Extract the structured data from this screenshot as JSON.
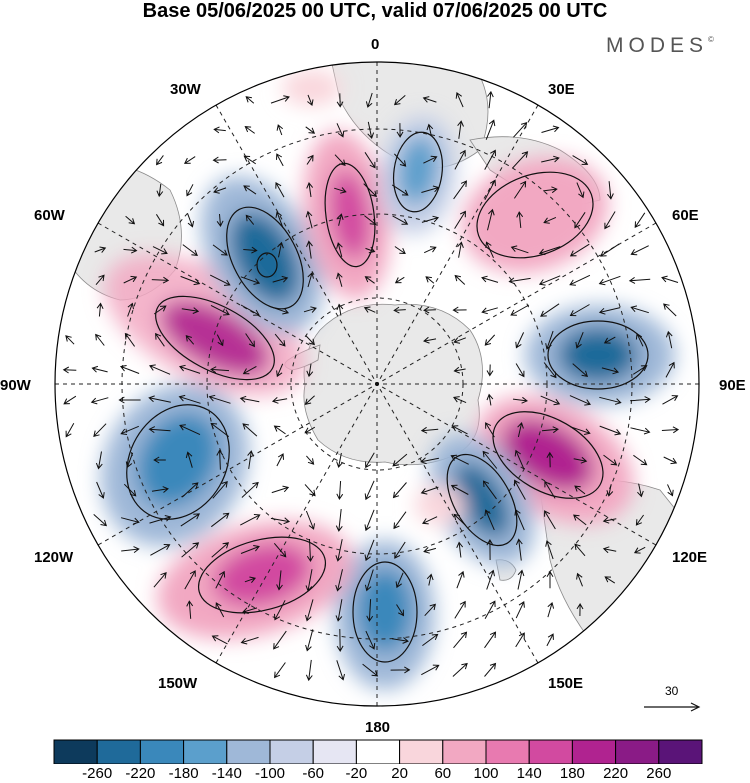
{
  "title": "Base 05/06/2025 00 UTC, valid 07/06/2025 00 UTC",
  "brand": {
    "text": "MODES",
    "mark": "©"
  },
  "longitude_labels": {
    "lon_0": "0",
    "lon_30e": "30E",
    "lon_60e": "60E",
    "lon_90e": "90E",
    "lon_120e": "120E",
    "lon_150e": "150E",
    "lon_180": "180",
    "lon_150w": "150W",
    "lon_120w": "120W",
    "lon_90w": "90W",
    "lon_60w": "60W",
    "lon_30w": "30W"
  },
  "reference_vector": {
    "label": "30"
  },
  "colorbar": {
    "levels": [
      "-260",
      "-220",
      "-180",
      "-140",
      "-100",
      "-60",
      "-20",
      "20",
      "60",
      "100",
      "140",
      "180",
      "220",
      "260"
    ],
    "colors": [
      "#0d3a5c",
      "#1f6a9a",
      "#3a88bb",
      "#5b9fcc",
      "#9fb8d8",
      "#c5cfe6",
      "#e6e6f3",
      "#ffffff",
      "#f9d6dc",
      "#f2a8c2",
      "#e87ab0",
      "#d24aa0",
      "#b02390",
      "#8a1b86",
      "#5a1478"
    ]
  },
  "map_colors": {
    "land": "#e9e9e9",
    "coast": "#8a8a8a",
    "grid": "#222222"
  },
  "anomaly_centers": [
    {
      "name": "pos-60w-90w",
      "sign": "positive",
      "peak": 220
    },
    {
      "name": "neg-45w",
      "sign": "negative",
      "peak": -260
    },
    {
      "name": "pos-15w",
      "sign": "positive",
      "peak": 180
    },
    {
      "name": "neg-10e",
      "sign": "negative",
      "peak": -140
    },
    {
      "name": "pos-45e",
      "sign": "positive",
      "peak": 100
    },
    {
      "name": "neg-80e",
      "sign": "negative",
      "peak": -180
    },
    {
      "name": "pos-110e",
      "sign": "positive",
      "peak": 220
    },
    {
      "name": "neg-140e",
      "sign": "negative",
      "peak": -180
    },
    {
      "name": "neg-180",
      "sign": "negative",
      "peak": -180
    },
    {
      "name": "pos-150w",
      "sign": "positive",
      "peak": 180
    },
    {
      "name": "neg-110w",
      "sign": "negative",
      "peak": -180
    }
  ]
}
